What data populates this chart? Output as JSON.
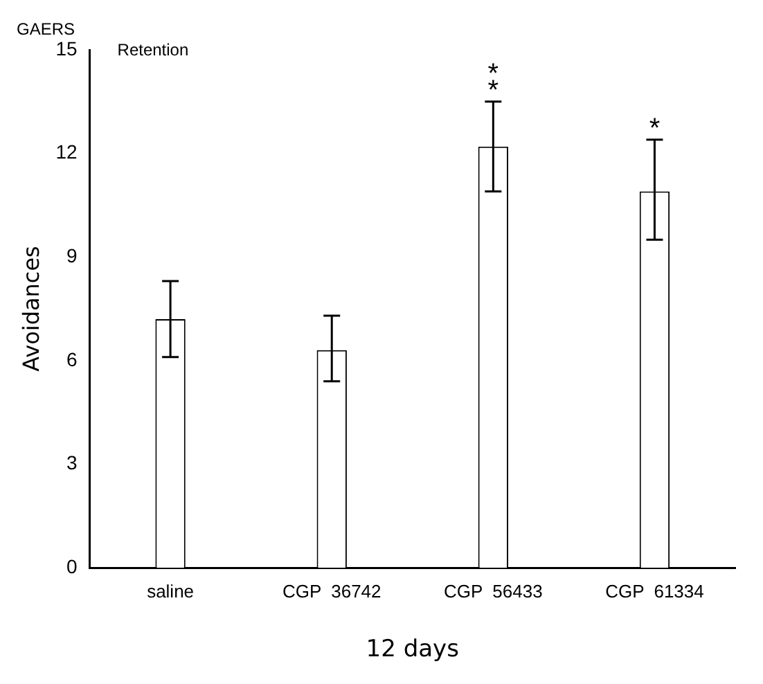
{
  "chart_data": {
    "type": "bar",
    "title": "GAERS",
    "xlabel": "12 days",
    "ylabel": "Avoidances",
    "categories": [
      "saline",
      "CGP  36742",
      "CGP  56433",
      "CGP  61334"
    ],
    "values": [
      7.2,
      6.3,
      12.2,
      10.9
    ],
    "errors": [
      [
        6.1,
        8.3
      ],
      [
        5.4,
        7.3
      ],
      [
        10.9,
        13.5
      ],
      [
        9.5,
        12.4
      ]
    ],
    "color": "#ffffff",
    "ylim": [
      0,
      15
    ],
    "yticks": [
      0,
      3,
      6,
      9,
      12,
      15
    ],
    "grid": false,
    "legend": false,
    "annotations": [
      "Retention",
      {
        "text": "**",
        "x": "CGP  56433",
        "y": 13.5
      },
      {
        "text": "*",
        "x": "CGP  61334",
        "y": 12.4
      }
    ]
  }
}
